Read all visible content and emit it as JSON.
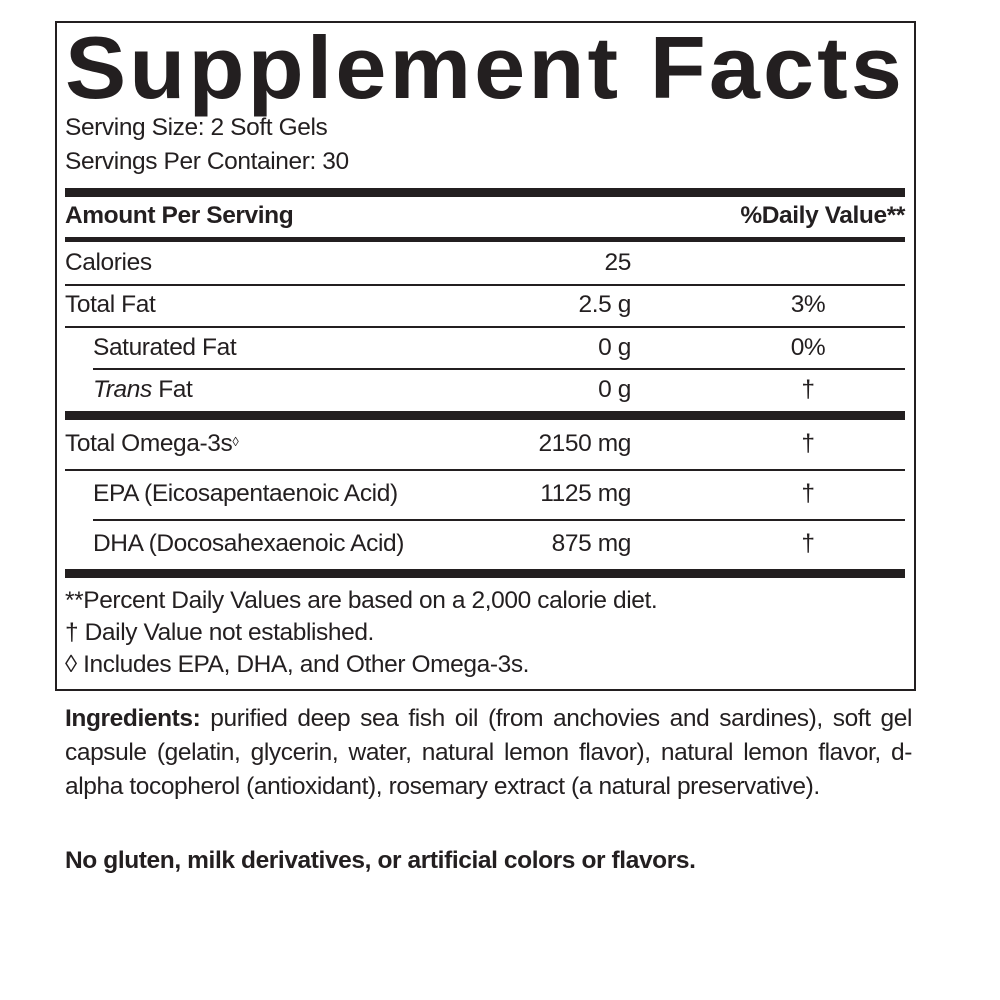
{
  "title": "Supplement Facts",
  "serving_size": "Serving Size: 2 Soft Gels",
  "servings_per_container": "Servings Per Container: 30",
  "header": {
    "amount": "Amount Per Serving",
    "dv": "%Daily Value**"
  },
  "rows": [
    {
      "name": "Calories",
      "amount": "25",
      "dv": ""
    },
    {
      "name": "Total Fat",
      "amount": "2.5 g",
      "dv": "3%"
    },
    {
      "name": "Saturated Fat",
      "amount": "0 g",
      "dv": "0%"
    },
    {
      "name_italic": "Trans",
      "name": " Fat",
      "amount": "0 g",
      "dv": "†"
    },
    {
      "name": "Total Omega-3s",
      "mark": "◊",
      "amount": "2150 mg",
      "dv": "†"
    },
    {
      "name": "EPA (Eicosapentaenoic Acid)",
      "amount": "1125 mg",
      "dv": "†"
    },
    {
      "name": "DHA (Docosahexaenoic Acid)",
      "amount": "875 mg",
      "dv": "†"
    }
  ],
  "footnotes": [
    "**Percent Daily Values are based on a 2,000 calorie diet.",
    "† Daily Value not established.",
    "◊ Includes EPA, DHA, and Other Omega-3s."
  ],
  "ingredients": {
    "label": "Ingredients:",
    "text": " purified deep sea fish oil (from anchovies and sardines), soft gel capsule (gelatin, glycerin, water, natural lemon flavor), natural lemon flavor, d-alpha tocopherol (antioxidant), rosemary extract (a natural preservative)."
  },
  "allergen_note": "No gluten, milk derivatives, or artificial colors or flavors."
}
